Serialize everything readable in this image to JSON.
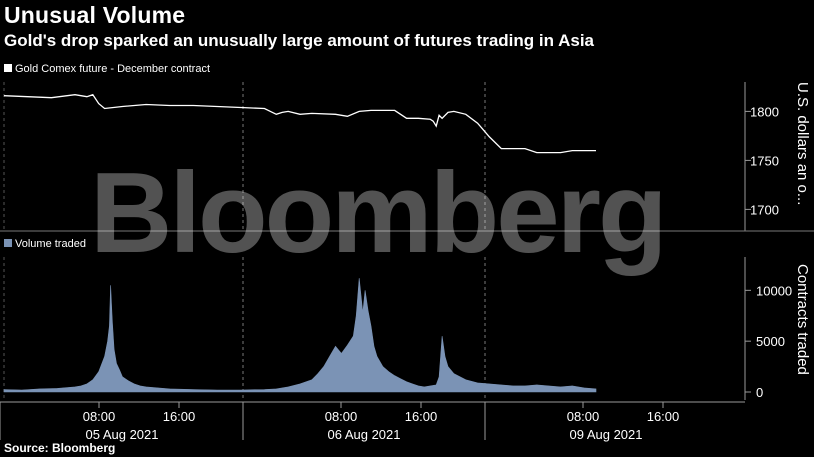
{
  "header": {
    "title": "Unusual Volume",
    "subtitle": "Gold's drop sparked an unusually large amount of futures trading in Asia"
  },
  "footer": {
    "source": "Source: Bloomberg"
  },
  "watermark": "Bloomberg",
  "colors": {
    "background": "#000000",
    "price_line": "#ffffff",
    "volume": "#7b93b5",
    "axis": "#9a9a9a",
    "grid": "#555555"
  },
  "chart_data": [
    {
      "type": "line",
      "legend": "Gold Comex future - December contract",
      "ylabel": "U.S. dollars an o...",
      "ylim": [
        1680,
        1830
      ],
      "yticks": [
        1700,
        1750,
        1800
      ],
      "grid": false,
      "x_hours": [
        0,
        4,
        8,
        12,
        13,
        14,
        15,
        16,
        17,
        20,
        24,
        28,
        32,
        36,
        40,
        44,
        45,
        46,
        47,
        48,
        50,
        52,
        56,
        58,
        60,
        62,
        66,
        68,
        70,
        72,
        72.5,
        73,
        73.5,
        74,
        75,
        76,
        78,
        80,
        82,
        84,
        86,
        88,
        90,
        92,
        94,
        96,
        98,
        100
      ],
      "series": [
        {
          "name": "Gold Comex future - December contract",
          "values": [
            1816,
            1815,
            1814,
            1817,
            1816,
            1815,
            1817,
            1808,
            1803,
            1805,
            1807,
            1806,
            1806,
            1805,
            1804,
            1803,
            1800,
            1797,
            1799,
            1800,
            1797,
            1798,
            1797,
            1795,
            1800,
            1801,
            1801,
            1793,
            1793,
            1792,
            1790,
            1785,
            1796,
            1793,
            1799,
            1800,
            1797,
            1788,
            1774,
            1762,
            1762,
            1762,
            1758,
            1758,
            1758,
            1760,
            1760,
            1760
          ]
        }
      ]
    },
    {
      "type": "bar",
      "legend": "Volume traded",
      "ylabel": "Contracts traded",
      "ylim": [
        0,
        12000
      ],
      "yticks": [
        0,
        5000,
        10000
      ],
      "x_labels": [
        "08:00",
        "16:00",
        "08:00",
        "16:00",
        "08:00",
        "16:00"
      ],
      "date_labels": [
        "05 Aug 2021",
        "06 Aug 2021",
        "09 Aug 2021"
      ],
      "series": [
        {
          "name": "Volume traded",
          "points": [
            [
              0,
              250
            ],
            [
              3,
              200
            ],
            [
              6,
              300
            ],
            [
              9,
              350
            ],
            [
              12,
              500
            ],
            [
              13,
              600
            ],
            [
              14,
              800
            ],
            [
              15,
              1200
            ],
            [
              16,
              2000
            ],
            [
              17,
              3500
            ],
            [
              17.5,
              5000
            ],
            [
              17.8,
              6500
            ],
            [
              18,
              10500
            ],
            [
              18.3,
              7000
            ],
            [
              18.6,
              4200
            ],
            [
              19,
              2800
            ],
            [
              19.5,
              2200
            ],
            [
              20,
              1500
            ],
            [
              21,
              1100
            ],
            [
              22,
              800
            ],
            [
              23,
              600
            ],
            [
              24,
              500
            ],
            [
              26,
              400
            ],
            [
              28,
              300
            ],
            [
              32,
              250
            ],
            [
              36,
              200
            ],
            [
              40,
              200
            ],
            [
              44,
              250
            ],
            [
              46,
              300
            ],
            [
              48,
              500
            ],
            [
              50,
              800
            ],
            [
              52,
              1200
            ],
            [
              53,
              1800
            ],
            [
              54,
              2500
            ],
            [
              55,
              3500
            ],
            [
              56,
              4500
            ],
            [
              57,
              3800
            ],
            [
              58,
              4600
            ],
            [
              59,
              5500
            ],
            [
              59.5,
              7500
            ],
            [
              60,
              11200
            ],
            [
              60.3,
              9500
            ],
            [
              60.6,
              7800
            ],
            [
              61,
              10000
            ],
            [
              61.5,
              8000
            ],
            [
              62,
              6500
            ],
            [
              62.5,
              4500
            ],
            [
              63,
              3500
            ],
            [
              64,
              2500
            ],
            [
              65,
              2000
            ],
            [
              66,
              1600
            ],
            [
              67,
              1300
            ],
            [
              68,
              1000
            ],
            [
              69,
              800
            ],
            [
              70,
              600
            ],
            [
              71,
              500
            ],
            [
              72,
              600
            ],
            [
              73,
              700
            ],
            [
              73.5,
              1500
            ],
            [
              74,
              5500
            ],
            [
              74.5,
              3500
            ],
            [
              75,
              2500
            ],
            [
              76,
              1800
            ],
            [
              78,
              1200
            ],
            [
              80,
              900
            ],
            [
              82,
              800
            ],
            [
              84,
              700
            ],
            [
              86,
              600
            ],
            [
              88,
              600
            ],
            [
              90,
              700
            ],
            [
              92,
              600
            ],
            [
              94,
              500
            ],
            [
              96,
              600
            ],
            [
              98,
              400
            ],
            [
              100,
              300
            ]
          ]
        }
      ]
    }
  ]
}
